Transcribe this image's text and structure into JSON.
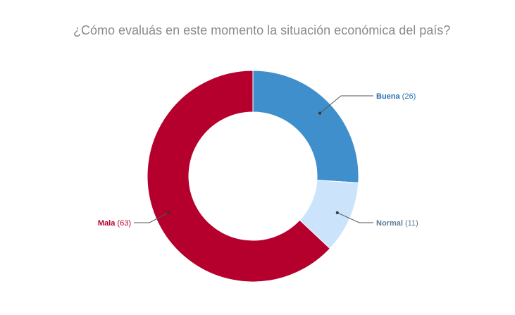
{
  "chart_data": {
    "type": "pie",
    "title": "¿Cómo evaluás en este momento la situación económica del país?",
    "donut": true,
    "slices": [
      {
        "label": "Buena",
        "value": 26,
        "value_text": "(26)",
        "color": "#3f8fcc",
        "label_color": "#2a72b0"
      },
      {
        "label": "Normal",
        "value": 11,
        "value_text": "(11)",
        "color": "#cce4fb",
        "label_color": "#5b7a95"
      },
      {
        "label": "Mala",
        "value": 63,
        "value_text": "(63)",
        "color": "#b5002e",
        "label_color": "#b5002e"
      }
    ]
  }
}
